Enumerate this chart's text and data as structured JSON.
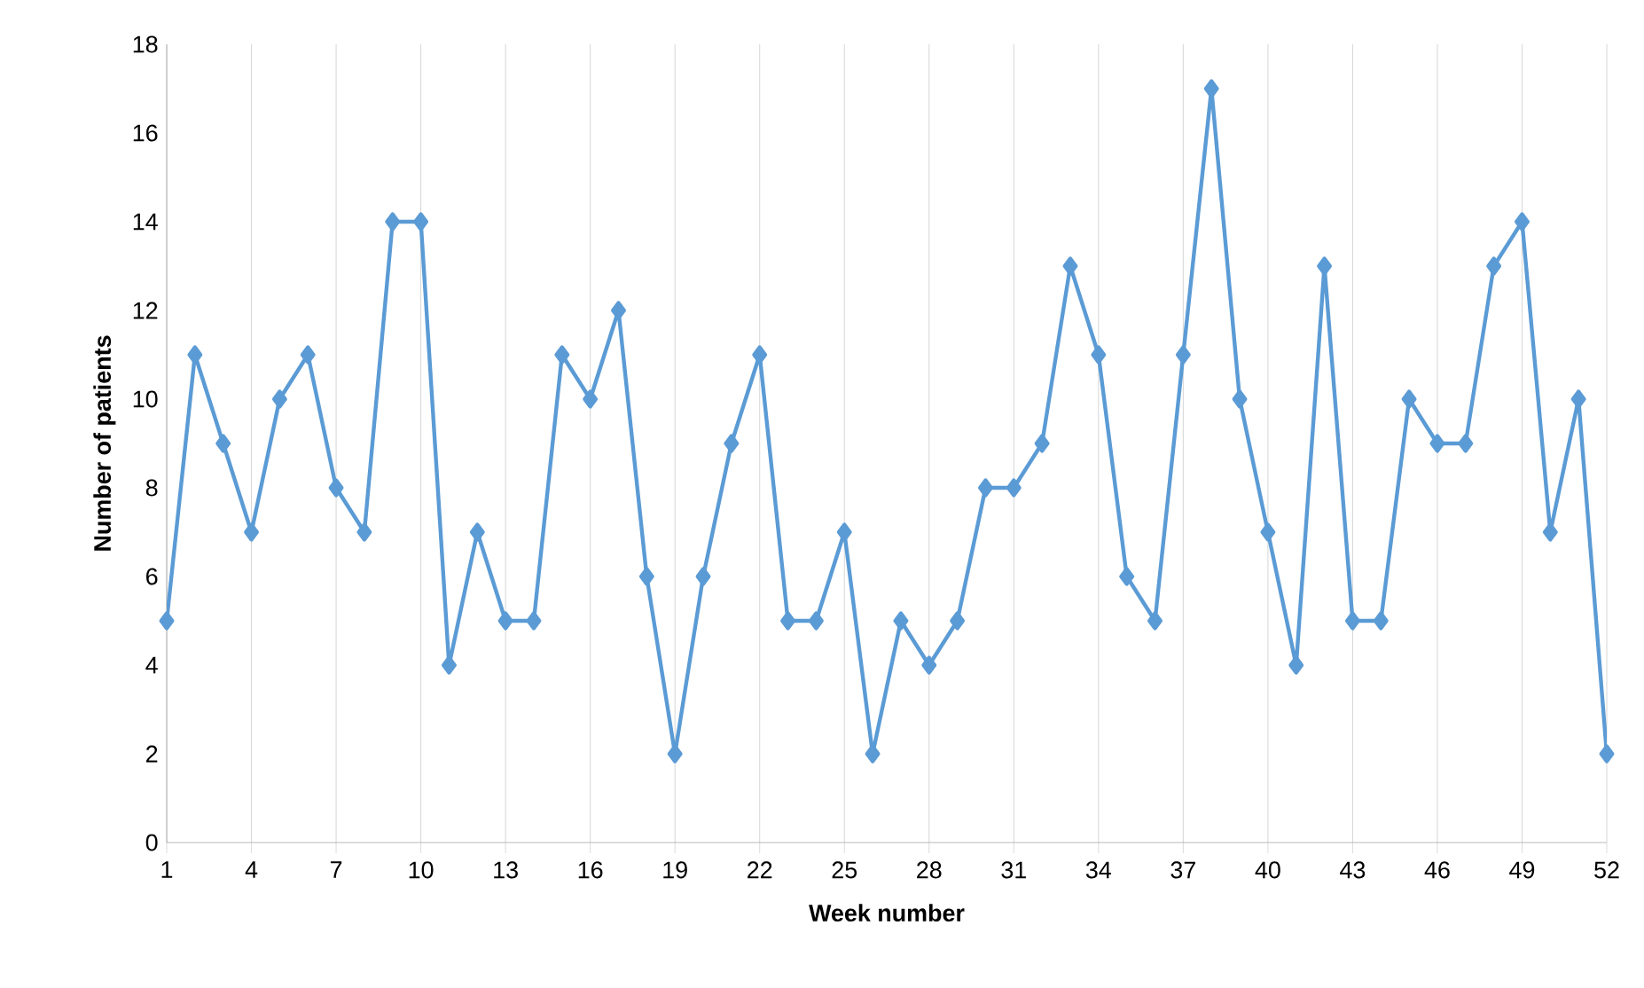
{
  "chart_data": {
    "type": "line",
    "xlabel": "Week number",
    "ylabel": "Number of patients",
    "x": [
      1,
      2,
      3,
      4,
      5,
      6,
      7,
      8,
      9,
      10,
      11,
      12,
      13,
      14,
      15,
      16,
      17,
      18,
      19,
      20,
      21,
      22,
      23,
      24,
      25,
      26,
      27,
      28,
      29,
      30,
      31,
      32,
      33,
      34,
      35,
      36,
      37,
      38,
      39,
      40,
      41,
      42,
      43,
      44,
      45,
      46,
      47,
      48,
      49,
      50,
      51,
      52
    ],
    "values": [
      5,
      11,
      9,
      7,
      10,
      11,
      8,
      7,
      14,
      14,
      4,
      7,
      5,
      5,
      11,
      10,
      12,
      6,
      2,
      6,
      9,
      11,
      5,
      5,
      7,
      2,
      5,
      4,
      5,
      8,
      8,
      9,
      13,
      11,
      6,
      5,
      11,
      17,
      10,
      7,
      4,
      13,
      5,
      5,
      10,
      9,
      9,
      13,
      14,
      7,
      10,
      2
    ],
    "color": "#5b9bd5",
    "marker": "diamond",
    "line_style": "solid",
    "grid": "x",
    "xlim": [
      1,
      52
    ],
    "xticks": [
      1,
      4,
      7,
      10,
      13,
      16,
      19,
      22,
      25,
      28,
      31,
      34,
      37,
      40,
      43,
      46,
      49,
      52
    ],
    "ylim": [
      0,
      18
    ],
    "yticks": [
      0,
      2,
      4,
      6,
      8,
      10,
      12,
      14,
      16,
      18
    ]
  }
}
